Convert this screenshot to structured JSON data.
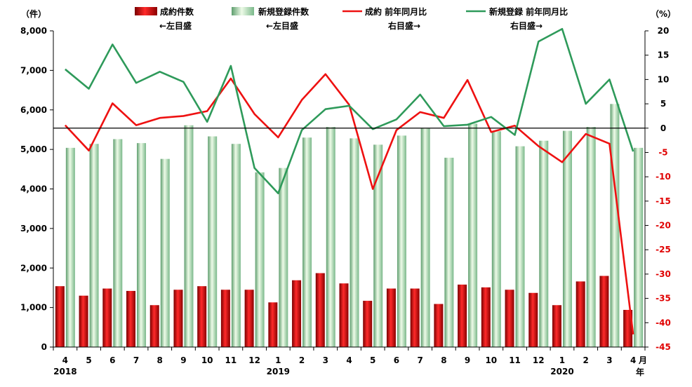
{
  "chart_data": {
    "type": "bar",
    "left_unit": "（件）",
    "right_unit": "（%）",
    "x_unit_labels": [
      "月",
      "年"
    ],
    "categories": [
      "4",
      "5",
      "6",
      "7",
      "8",
      "9",
      "10",
      "11",
      "12",
      "1",
      "2",
      "3",
      "4",
      "5",
      "6",
      "7",
      "8",
      "9",
      "10",
      "11",
      "12",
      "1",
      "2",
      "3",
      "4"
    ],
    "year_labels": [
      {
        "index": 0,
        "label": "2018"
      },
      {
        "index": 9,
        "label": "2019"
      },
      {
        "index": 21,
        "label": "2020"
      }
    ],
    "y_left": {
      "min": 0,
      "max": 8000,
      "ticks": [
        "0",
        "1,000",
        "2,000",
        "3,000",
        "4,000",
        "5,000",
        "6,000",
        "7,000",
        "8,000"
      ]
    },
    "y_right": {
      "min": -45,
      "max": 20,
      "ticks_black": [
        "20",
        "15",
        "10",
        "5",
        "0"
      ],
      "ticks_red": [
        "-5",
        "-10",
        "-15",
        "-20",
        "-25",
        "-30",
        "-35",
        "-40",
        "-45"
      ]
    },
    "series": [
      {
        "name": "成約件数",
        "sub_label": "←左目盛",
        "kind": "bar",
        "axis": "left",
        "color": "#cc0000",
        "values": [
          1540,
          1300,
          1480,
          1420,
          1060,
          1450,
          1540,
          1450,
          1450,
          1130,
          1690,
          1870,
          1610,
          1170,
          1480,
          1480,
          1090,
          1580,
          1510,
          1450,
          1370,
          1060,
          1660,
          1800,
          940
        ]
      },
      {
        "name": "新規登録件数",
        "sub_label": "←左目盛",
        "kind": "bar",
        "axis": "left",
        "color": "#7fbf8f",
        "values": [
          5040,
          5140,
          5260,
          5160,
          4760,
          5610,
          5330,
          5140,
          4420,
          4530,
          5300,
          5570,
          5280,
          5120,
          5350,
          5540,
          4790,
          5650,
          5460,
          5080,
          5220,
          5470,
          5570,
          6150,
          5040
        ]
      },
      {
        "name": "成約 前年同月比",
        "sub_label": "右目盛→",
        "kind": "line",
        "axis": "right",
        "color": "#ee1111",
        "values": [
          0.6,
          -4.6,
          5.1,
          0.6,
          2.1,
          2.5,
          3.5,
          10.2,
          2.9,
          -1.9,
          5.8,
          11.1,
          4.8,
          -12.5,
          -0.4,
          3.3,
          2.1,
          9.9,
          -0.8,
          0.5,
          -3.7,
          -7.0,
          -1.2,
          -3.2,
          -42.4
        ]
      },
      {
        "name": "新規登録 前年同月比",
        "sub_label": "右目盛→",
        "kind": "line",
        "axis": "right",
        "color": "#2e9a5a",
        "values": [
          12.1,
          8.1,
          17.2,
          9.3,
          11.6,
          9.5,
          1.3,
          12.8,
          -8.2,
          -13.4,
          -0.4,
          3.9,
          4.6,
          -0.2,
          1.8,
          6.9,
          0.4,
          0.7,
          2.3,
          -1.4,
          17.8,
          20.4,
          5.0,
          10.0,
          -4.8
        ]
      }
    ],
    "grid": false
  }
}
